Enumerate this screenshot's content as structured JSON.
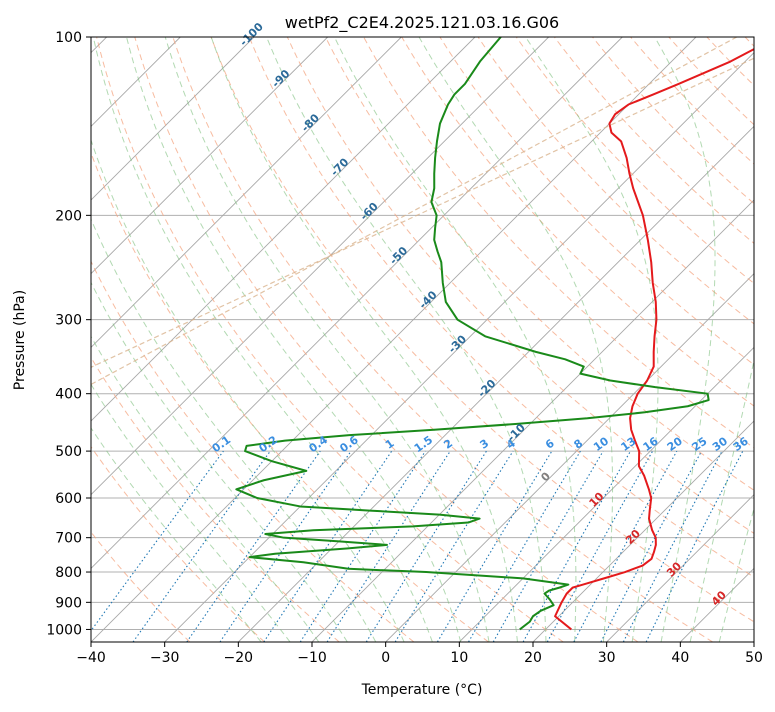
{
  "chart_data": {
    "type": "skew-t",
    "title": "wetPf2_C2E4.2025.121.03.16.G06",
    "xlabel": "Temperature (°C)",
    "ylabel": "Pressure (hPa)",
    "xlim": [
      -40,
      50
    ],
    "ylim": [
      1050,
      100
    ],
    "y_scale": "log",
    "x_ticks": [
      "−40",
      "−30",
      "−20",
      "−10",
      "0",
      "10",
      "20",
      "30",
      "40",
      "50"
    ],
    "x_tick_values": [
      -40,
      -30,
      -20,
      -10,
      0,
      10,
      20,
      30,
      40,
      50
    ],
    "y_ticks": [
      "100",
      "200",
      "300",
      "400",
      "500",
      "600",
      "700",
      "800",
      "900",
      "1000"
    ],
    "y_tick_values": [
      100,
      200,
      300,
      400,
      500,
      600,
      700,
      800,
      900,
      1000
    ],
    "grid": true,
    "skew_deg": 45,
    "colors": {
      "temperature": "#e41a1c",
      "dewpoint": "#1a8a1a",
      "isotherm": "#999999",
      "dry_adiabat": "#f4a582",
      "moist_adiabat": "#7fbf7f",
      "mixing_ratio": "#1f77b4",
      "isotherm_label": "#2b6a99",
      "adiabat_label": "#d62728",
      "mixing_label": "#3a8ee0",
      "zero_isotherm_label": "#808080",
      "isohume_ring": "#d9b48f"
    },
    "series": [
      {
        "kind": "temperature",
        "points": [
          [
            1000,
            23.5
          ],
          [
            950,
            19.5
          ],
          [
            900,
            18.5
          ],
          [
            870,
            18.0
          ],
          [
            850,
            18.0
          ],
          [
            840,
            19.0
          ],
          [
            820,
            21.0
          ],
          [
            800,
            23.0
          ],
          [
            780,
            24.5
          ],
          [
            760,
            24.8
          ],
          [
            740,
            24.2
          ],
          [
            720,
            23.5
          ],
          [
            700,
            22.5
          ],
          [
            680,
            21.0
          ],
          [
            650,
            19.0
          ],
          [
            630,
            18.0
          ],
          [
            600,
            16.5
          ],
          [
            580,
            15.0
          ],
          [
            550,
            12.5
          ],
          [
            530,
            10.5
          ],
          [
            500,
            8.5
          ],
          [
            480,
            6.5
          ],
          [
            460,
            4.5
          ],
          [
            440,
            2.8
          ],
          [
            420,
            1.5
          ],
          [
            400,
            0.5
          ],
          [
            380,
            0.0
          ],
          [
            360,
            -1.0
          ],
          [
            340,
            -3.0
          ],
          [
            320,
            -5.0
          ],
          [
            300,
            -7.0
          ],
          [
            280,
            -9.5
          ],
          [
            260,
            -12.5
          ],
          [
            240,
            -15.5
          ],
          [
            220,
            -19.0
          ],
          [
            200,
            -23.0
          ],
          [
            180,
            -28.0
          ],
          [
            170,
            -30.5
          ],
          [
            160,
            -33.0
          ],
          [
            150,
            -36.0
          ],
          [
            145,
            -38.5
          ],
          [
            140,
            -40.0
          ],
          [
            135,
            -40.5
          ],
          [
            130,
            -40.0
          ],
          [
            125,
            -38.0
          ],
          [
            120,
            -36.0
          ],
          [
            110,
            -32.0
          ],
          [
            100,
            -29.0
          ]
        ]
      },
      {
        "kind": "dewpoint",
        "points": [
          [
            1000,
            16.5
          ],
          [
            970,
            16.8
          ],
          [
            950,
            16.5
          ],
          [
            930,
            16.8
          ],
          [
            910,
            17.8
          ],
          [
            890,
            16.5
          ],
          [
            870,
            15.0
          ],
          [
            860,
            15.2
          ],
          [
            850,
            16.2
          ],
          [
            840,
            17.0
          ],
          [
            820,
            10.0
          ],
          [
            800,
            -4.0
          ],
          [
            790,
            -15.0
          ],
          [
            770,
            -22.0
          ],
          [
            755,
            -30.0
          ],
          [
            745,
            -27.0
          ],
          [
            730,
            -18.0
          ],
          [
            720,
            -13.0
          ],
          [
            710,
            -20.0
          ],
          [
            700,
            -28.0
          ],
          [
            690,
            -31.0
          ],
          [
            680,
            -25.0
          ],
          [
            670,
            -12.0
          ],
          [
            660,
            -5.0
          ],
          [
            650,
            -4.0
          ],
          [
            640,
            -10.0
          ],
          [
            630,
            -20.0
          ],
          [
            620,
            -30.0
          ],
          [
            600,
            -37.0
          ],
          [
            580,
            -41.0
          ],
          [
            560,
            -38.5
          ],
          [
            540,
            -34.0
          ],
          [
            520,
            -40.0
          ],
          [
            500,
            -45.0
          ],
          [
            490,
            -45.5
          ],
          [
            480,
            -41.0
          ],
          [
            470,
            -33.0
          ],
          [
            460,
            -22.0
          ],
          [
            450,
            -12.0
          ],
          [
            440,
            -3.0
          ],
          [
            430,
            4.0
          ],
          [
            420,
            9.0
          ],
          [
            410,
            11.0
          ],
          [
            400,
            10.0
          ],
          [
            390,
            2.0
          ],
          [
            380,
            -5.0
          ],
          [
            370,
            -10.0
          ],
          [
            360,
            -10.5
          ],
          [
            350,
            -14.0
          ],
          [
            340,
            -19.0
          ],
          [
            320,
            -28.0
          ],
          [
            300,
            -34.0
          ],
          [
            280,
            -38.0
          ],
          [
            260,
            -41.0
          ],
          [
            240,
            -44.0
          ],
          [
            230,
            -46.0
          ],
          [
            220,
            -48.0
          ],
          [
            210,
            -49.5
          ],
          [
            200,
            -51.0
          ],
          [
            190,
            -53.5
          ],
          [
            180,
            -55.0
          ],
          [
            170,
            -57.0
          ],
          [
            160,
            -59.0
          ],
          [
            150,
            -61.0
          ],
          [
            140,
            -63.0
          ],
          [
            130,
            -64.5
          ],
          [
            125,
            -65.0
          ],
          [
            120,
            -65.0
          ],
          [
            110,
            -66.0
          ],
          [
            100,
            -66.5
          ]
        ]
      }
    ],
    "isotherm_labels": [
      "-100",
      "-90",
      "-80",
      "-70",
      "-60",
      "-50",
      "-40",
      "-30",
      "-20",
      "-10",
      "0"
    ],
    "isotherm_label_values": [
      -100,
      -90,
      -80,
      -70,
      -60,
      -50,
      -40,
      -30,
      -20,
      -10,
      0
    ],
    "adiabat_labels": [
      "10",
      "20",
      "30",
      "40"
    ],
    "adiabat_label_values": [
      10,
      20,
      30,
      40
    ],
    "mixing_ratio_labels": [
      "0.1",
      "0.2",
      "0.4",
      "0.6",
      "1",
      "1.5",
      "2",
      "3",
      "4",
      "6",
      "8",
      "10",
      "13",
      "16",
      "20",
      "25",
      "30",
      "36"
    ],
    "mixing_ratio_values": [
      0.1,
      0.2,
      0.4,
      0.6,
      1,
      1.5,
      2,
      3,
      4,
      6,
      8,
      10,
      13,
      16,
      20,
      25,
      30,
      36
    ]
  }
}
